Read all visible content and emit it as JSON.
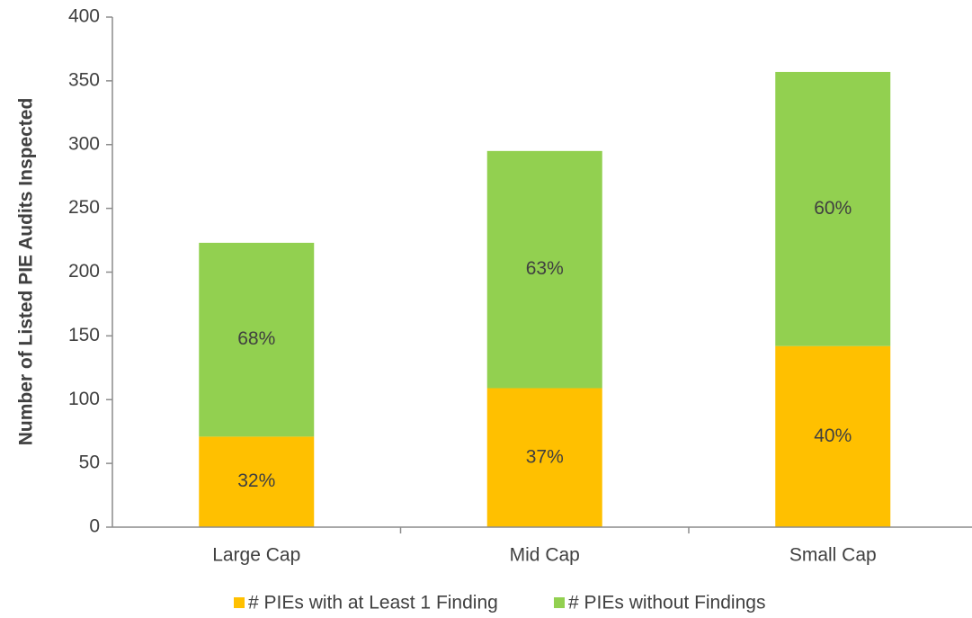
{
  "chart_data": {
    "type": "stacked_bar",
    "y_label": "Number of Listed PIE Audits Inspected",
    "categories": [
      "Large Cap",
      "Mid Cap",
      "Small Cap"
    ],
    "series": [
      {
        "name": "# PIEs with at Least 1 Finding",
        "color": "#ffc000",
        "values": [
          71,
          109,
          142
        ],
        "share_labels": [
          "32%",
          "37%",
          "40%"
        ]
      },
      {
        "name": "# PIEs without Findings",
        "color": "#92d050",
        "values": [
          152,
          186,
          215
        ],
        "share_labels": [
          "68%",
          "63%",
          "60%"
        ]
      }
    ],
    "ylim": [
      0,
      400
    ],
    "yticks": [
      0,
      50,
      100,
      150,
      200,
      250,
      300,
      350,
      400
    ],
    "grid": false,
    "legend": "bottom"
  }
}
